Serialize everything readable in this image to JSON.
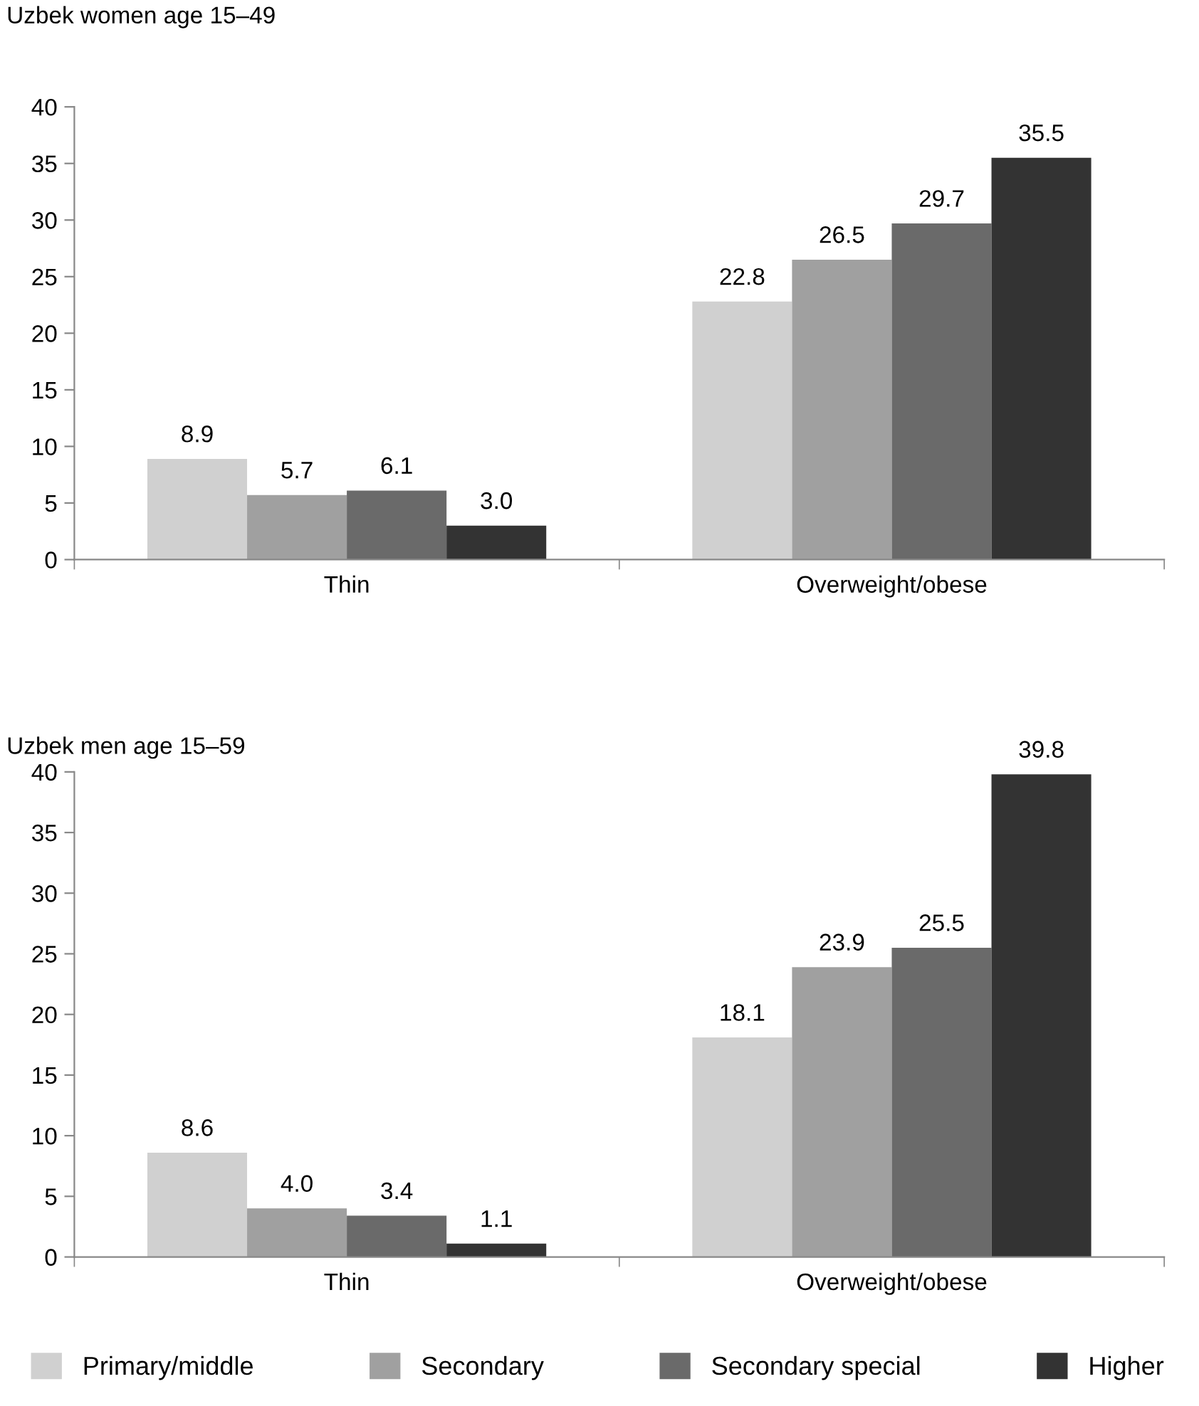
{
  "chart_data": [
    {
      "type": "bar",
      "title": "Uzbek women age 15–49",
      "categories": [
        "Thin",
        "Overweight/obese"
      ],
      "ylim": [
        0,
        40
      ],
      "yticks": [
        0,
        5,
        10,
        15,
        20,
        25,
        30,
        35,
        40
      ],
      "grid": false,
      "series": [
        {
          "color": "#d0d0d0",
          "values": [
            8.9,
            22.8
          ],
          "value_labels": [
            "8.9",
            "22.8"
          ]
        },
        {
          "color": "#a0a0a0",
          "values": [
            5.7,
            26.5
          ],
          "value_labels": [
            "5.7",
            "26.5"
          ]
        },
        {
          "color": "#6a6a6a",
          "values": [
            6.1,
            29.7
          ],
          "value_labels": [
            "6.1",
            "29.7"
          ]
        },
        {
          "color": "#333333",
          "values": [
            3.0,
            35.5
          ],
          "value_labels": [
            "3.0",
            "35.5"
          ]
        }
      ]
    },
    {
      "type": "bar",
      "title": "Uzbek men age 15–59",
      "categories": [
        "Thin",
        "Overweight/obese"
      ],
      "ylim": [
        0,
        40
      ],
      "yticks": [
        0,
        5,
        10,
        15,
        20,
        25,
        30,
        35,
        40
      ],
      "grid": false,
      "legend": "bottom",
      "series": [
        {
          "name": "Primary/middle",
          "color": "#d0d0d0",
          "values": [
            8.6,
            18.1
          ],
          "value_labels": [
            "8.6",
            "18.1"
          ]
        },
        {
          "name": "Secondary",
          "color": "#a0a0a0",
          "values": [
            4.0,
            23.9
          ],
          "value_labels": [
            "4.0",
            "23.9"
          ]
        },
        {
          "name": "Secondary special",
          "color": "#6a6a6a",
          "values": [
            3.4,
            25.5
          ],
          "value_labels": [
            "3.4",
            "25.5"
          ]
        },
        {
          "name": "Higher",
          "color": "#333333",
          "values": [
            1.1,
            39.8
          ],
          "value_labels": [
            "1.1",
            "39.8"
          ]
        }
      ]
    }
  ]
}
